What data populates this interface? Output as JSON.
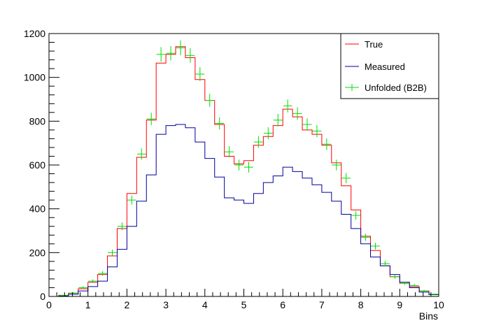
{
  "chart_data": {
    "type": "line",
    "title": "",
    "xlabel": "Bins",
    "ylabel": "",
    "xlim": [
      0,
      10
    ],
    "ylim": [
      0,
      1200
    ],
    "grid": false,
    "legend_position": "top-right",
    "bin_edges": [
      0,
      0.25,
      0.5,
      0.75,
      1,
      1.25,
      1.5,
      1.75,
      2,
      2.25,
      2.5,
      2.75,
      3,
      3.25,
      3.5,
      3.75,
      4,
      4.25,
      4.5,
      4.75,
      5,
      5.25,
      5.5,
      5.75,
      6,
      6.25,
      6.5,
      6.75,
      7,
      7.25,
      7.5,
      7.75,
      8,
      8.25,
      8.5,
      8.75,
      9,
      9.25,
      9.5,
      9.75,
      10
    ],
    "x_ticks": [
      "0",
      "1",
      "2",
      "3",
      "4",
      "5",
      "6",
      "7",
      "8",
      "9",
      "10"
    ],
    "y_ticks": [
      "0",
      "200",
      "400",
      "600",
      "800",
      "1000",
      "1200"
    ],
    "series": [
      {
        "name": "True",
        "style": "step",
        "color": "#ff0000",
        "values": [
          0,
          5,
          15,
          35,
          65,
          100,
          185,
          310,
          470,
          635,
          805,
          1065,
          1105,
          1140,
          1090,
          990,
          895,
          785,
          640,
          605,
          620,
          690,
          730,
          780,
          855,
          820,
          760,
          740,
          690,
          610,
          505,
          395,
          275,
          210,
          140,
          90,
          60,
          45,
          25,
          10
        ]
      },
      {
        "name": "Measured",
        "style": "step",
        "color": "#000099",
        "values": [
          0,
          3,
          10,
          25,
          45,
          70,
          135,
          215,
          320,
          435,
          555,
          740,
          780,
          785,
          770,
          705,
          630,
          545,
          450,
          440,
          425,
          470,
          520,
          550,
          590,
          570,
          540,
          510,
          475,
          435,
          375,
          310,
          240,
          180,
          140,
          100,
          65,
          40,
          20,
          8
        ]
      },
      {
        "name": "Unfolded (B2B)",
        "style": "points",
        "color": "#00dd00",
        "values": [
          0,
          5,
          15,
          40,
          70,
          105,
          200,
          320,
          440,
          650,
          810,
          1105,
          1110,
          1135,
          1100,
          1015,
          895,
          790,
          660,
          600,
          590,
          705,
          745,
          805,
          870,
          835,
          785,
          755,
          695,
          600,
          540,
          370,
          270,
          230,
          150,
          90,
          60,
          50,
          25,
          10
        ]
      }
    ]
  }
}
